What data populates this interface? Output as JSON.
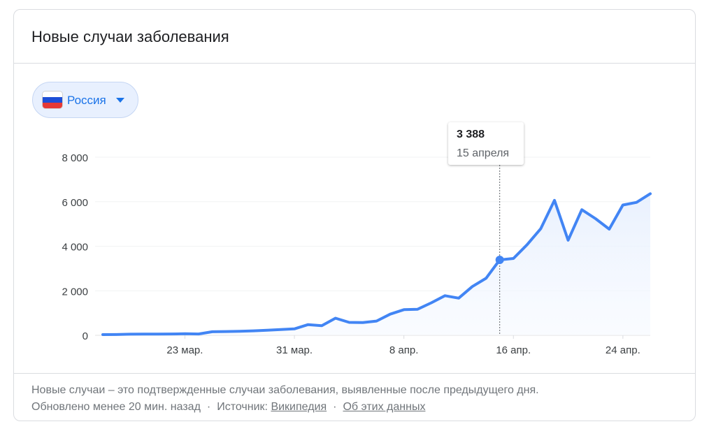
{
  "card": {
    "title": "Новые случаи заболевания"
  },
  "country_selector": {
    "label": "Россия",
    "flag_colors": [
      "#ffffff",
      "#1d4fd7",
      "#e53935"
    ],
    "icon": "chevron-down-icon"
  },
  "tooltip": {
    "value": "3 388",
    "date": "15 апреля"
  },
  "footer": {
    "note": "Новые случаи – это подтвержденные случаи заболевания, выявленные после предыдущего дня.",
    "updated": "Обновлено менее 20 мин. назад",
    "source_label": "Источник:",
    "source_link": "Википедия",
    "about_link": "Об этих данных",
    "separator": "·"
  },
  "colors": {
    "line": "#4285f4",
    "accent": "#1a73e8"
  },
  "chart_data": {
    "type": "area",
    "title": "",
    "xlabel": "",
    "ylabel": "",
    "ylim": [
      0,
      8000
    ],
    "yticks": [
      0,
      2000,
      4000,
      6000,
      8000
    ],
    "ytick_labels": [
      "0",
      "2 000",
      "4 000",
      "6 000",
      "8 000"
    ],
    "xticks": [
      {
        "date": "2020-03-23",
        "label": "23 мар."
      },
      {
        "date": "2020-03-31",
        "label": "31 мар."
      },
      {
        "date": "2020-04-08",
        "label": "8 апр."
      },
      {
        "date": "2020-04-16",
        "label": "16 апр."
      },
      {
        "date": "2020-04-24",
        "label": "24 апр."
      }
    ],
    "grid": true,
    "legend": "none",
    "highlight": {
      "date": "2020-04-15",
      "value": 3388
    },
    "series": [
      {
        "x": [
          "2020-03-17",
          "2020-03-18",
          "2020-03-19",
          "2020-03-20",
          "2020-03-21",
          "2020-03-22",
          "2020-03-23",
          "2020-03-24",
          "2020-03-25",
          "2020-03-26",
          "2020-03-27",
          "2020-03-28",
          "2020-03-29",
          "2020-03-30",
          "2020-03-31",
          "2020-04-01",
          "2020-04-02",
          "2020-04-03",
          "2020-04-04",
          "2020-04-05",
          "2020-04-06",
          "2020-04-07",
          "2020-04-08",
          "2020-04-09",
          "2020-04-10",
          "2020-04-11",
          "2020-04-12",
          "2020-04-13",
          "2020-04-14",
          "2020-04-15",
          "2020-04-16",
          "2020-04-17",
          "2020-04-18",
          "2020-04-19",
          "2020-04-20",
          "2020-04-21",
          "2020-04-22",
          "2020-04-23",
          "2020-04-24",
          "2020-04-25",
          "2020-04-26"
        ],
        "values": [
          30,
          35,
          50,
          55,
          55,
          60,
          70,
          60,
          160,
          170,
          180,
          200,
          230,
          260,
          290,
          480,
          430,
          770,
          580,
          570,
          640,
          950,
          1150,
          1170,
          1460,
          1780,
          1670,
          2190,
          2560,
          3388,
          3450,
          4070,
          4790,
          6060,
          4270,
          5640,
          5240,
          4770,
          5850,
          5970,
          6360
        ]
      }
    ]
  }
}
